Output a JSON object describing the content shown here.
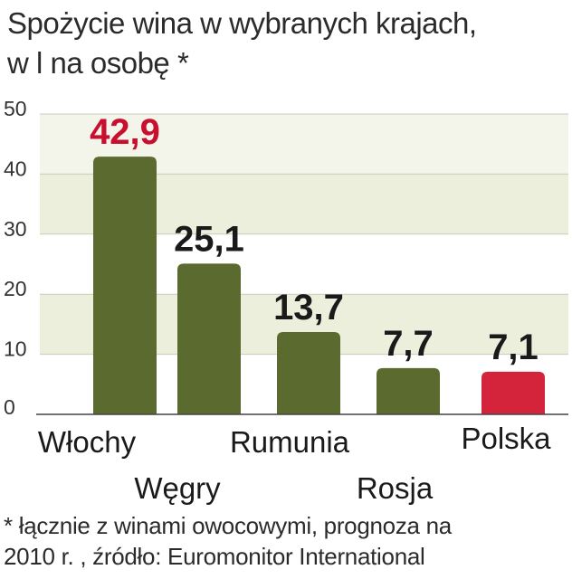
{
  "title_lines": [
    "Spożycie wina w wybranych krajach,",
    "w l na osobę *"
  ],
  "footnote_lines": [
    "* łącznie z winami owocowymi, prognoza na",
    "2010 r. , źródło: Euromonitor International"
  ],
  "colors": {
    "bar": "#5b6a2f",
    "bar_highlight": "#d4243c",
    "label_highlight": "#c8102e",
    "label": "#1a1a1a",
    "band": "#ecefdc"
  },
  "chart_data": {
    "type": "bar",
    "categories": [
      "Włochy",
      "Węgry",
      "Rumunia",
      "Rosja",
      "Polska"
    ],
    "values": [
      42.9,
      25.1,
      13.7,
      7.7,
      7.1
    ],
    "value_labels": [
      "42,9",
      "25,1",
      "13,7",
      "7,7",
      "7,1"
    ],
    "highlight": [
      0
    ],
    "highlight_bar": [
      4
    ],
    "ylim": [
      0,
      50
    ],
    "yticks": [
      "0",
      "10",
      "20",
      "30",
      "40",
      "50"
    ],
    "ytick_values": [
      0,
      10,
      20,
      30,
      40,
      50
    ],
    "grid": true
  }
}
